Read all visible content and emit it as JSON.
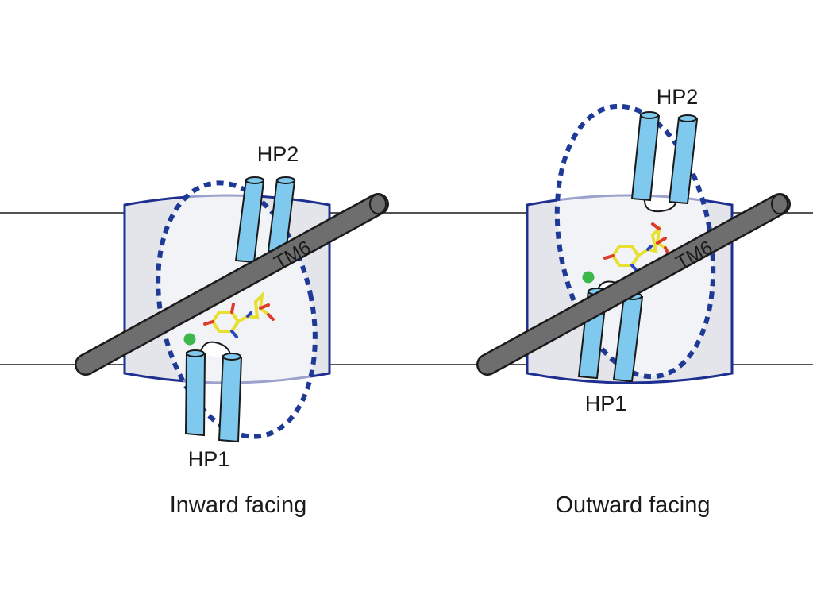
{
  "panels": [
    {
      "caption": "Inward facing",
      "labels": {
        "hp2": "HP2",
        "hp1": "HP1",
        "tm6": "TM6"
      }
    },
    {
      "caption": "Outward facing",
      "labels": {
        "hp2": "HP2",
        "hp1": "HP1",
        "tm6": "TM6"
      }
    }
  ],
  "colors": {
    "membrane_line": "#1a1a1a",
    "transporter_fill": "#e3e5ea",
    "transporter_outline": "#1f2f8f",
    "dashed_ellipse": "#1e3a96",
    "helix_fill": "#7fc9ef",
    "helix_outline": "#1a1a1a",
    "tm6_fill": "#6e6e6e",
    "substrate_carbon": "#e8e030",
    "substrate_oxygen": "#e03a2a",
    "substrate_nitrogen": "#2a44c8",
    "sodium_ion": "#3db84a"
  }
}
